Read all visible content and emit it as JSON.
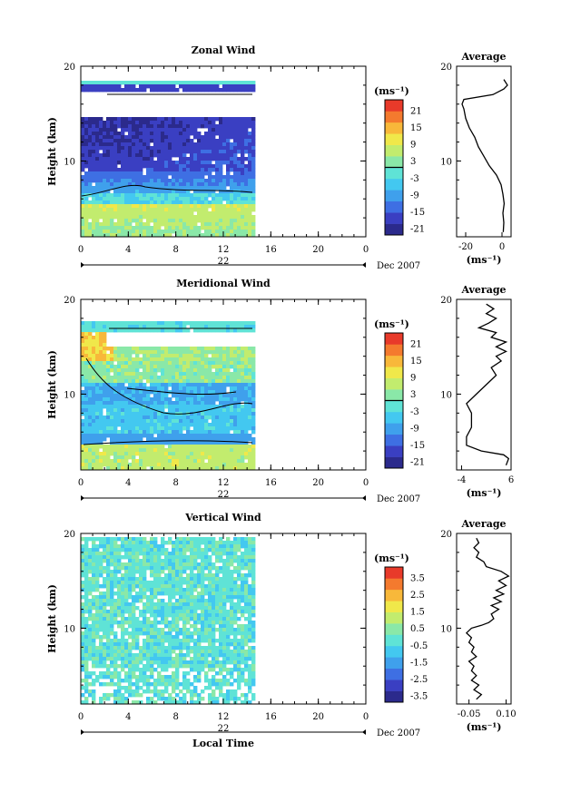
{
  "figure": {
    "day_label": "22",
    "month_label": "Dec 2007",
    "xlabel": "Local Time"
  },
  "chart_data": [
    {
      "type": "heatmap",
      "title": "Zonal Wind",
      "ylabel": "Height (km)",
      "xlim": [
        0,
        24
      ],
      "ylim": [
        2,
        20
      ],
      "xticks": [
        "0",
        "4",
        "8",
        "12",
        "16",
        "20",
        "0"
      ],
      "yticks": [
        "10",
        "20"
      ],
      "data_extent_x": [
        0,
        14.5
      ],
      "colorbar": {
        "unit": "(ms⁻¹)",
        "ticks": [
          "21",
          "15",
          "9",
          "3",
          "-3",
          "-9",
          "-15",
          "-21"
        ],
        "range": [
          -24,
          24
        ]
      },
      "profile": {
        "title": "Average",
        "xlabel": "(ms⁻¹)",
        "xticks": [
          "-20",
          "0"
        ],
        "xlim": [
          -25,
          5
        ],
        "points": [
          [
            0.7,
            2.5
          ],
          [
            1.0,
            3.5
          ],
          [
            0.5,
            4.5
          ],
          [
            1.2,
            5.5
          ],
          [
            0.5,
            6.5
          ],
          [
            -0.5,
            7.5
          ],
          [
            -3,
            8.5
          ],
          [
            -7,
            9.5
          ],
          [
            -10,
            10.5
          ],
          [
            -13,
            11.5
          ],
          [
            -15,
            12.5
          ],
          [
            -18,
            13.5
          ],
          [
            -20,
            14.5
          ],
          [
            -21,
            15.5
          ],
          [
            -22,
            16.0
          ],
          [
            -21,
            16.5
          ],
          [
            -5,
            17.0
          ],
          [
            1,
            17.6
          ],
          [
            3,
            18.0
          ],
          [
            1,
            18.6
          ]
        ]
      }
    },
    {
      "type": "heatmap",
      "title": "Meridional Wind",
      "ylabel": "Height (km)",
      "xlim": [
        0,
        24
      ],
      "ylim": [
        2,
        20
      ],
      "xticks": [
        "0",
        "4",
        "8",
        "12",
        "16",
        "20",
        "0"
      ],
      "yticks": [
        "10",
        "20"
      ],
      "data_extent_x": [
        0,
        14.5
      ],
      "colorbar": {
        "unit": "(ms⁻¹)",
        "ticks": [
          "21",
          "15",
          "9",
          "3",
          "-3",
          "-9",
          "-15",
          "-21"
        ],
        "range": [
          -24,
          24
        ]
      },
      "profile": {
        "title": "Average",
        "xlabel": "(ms⁻¹)",
        "xticks": [
          "-4",
          "6"
        ],
        "xlim": [
          -5,
          6
        ],
        "points": [
          [
            5,
            2.5
          ],
          [
            5.5,
            3.2
          ],
          [
            4.5,
            3.6
          ],
          [
            0,
            4.0
          ],
          [
            -3,
            4.6
          ],
          [
            -3,
            5.5
          ],
          [
            -2,
            6.5
          ],
          [
            -2,
            8.0
          ],
          [
            -3,
            9.0
          ],
          [
            -1,
            10.0
          ],
          [
            1,
            11.0
          ],
          [
            3,
            12.0
          ],
          [
            2,
            12.8
          ],
          [
            4,
            13.5
          ],
          [
            3,
            14.0
          ],
          [
            5,
            14.5
          ],
          [
            3,
            15.0
          ],
          [
            5,
            15.5
          ],
          [
            2,
            16.0
          ],
          [
            3,
            16.5
          ],
          [
            -0.5,
            17.0
          ],
          [
            1.5,
            17.5
          ],
          [
            3,
            18.0
          ],
          [
            1,
            18.5
          ],
          [
            2.5,
            19.0
          ],
          [
            1,
            19.5
          ]
        ]
      }
    },
    {
      "type": "heatmap",
      "title": "Vertical Wind",
      "ylabel": "Height (km)",
      "xlim": [
        0,
        24
      ],
      "ylim": [
        2,
        20
      ],
      "xticks": [
        "0",
        "4",
        "8",
        "12",
        "16",
        "20",
        "0"
      ],
      "yticks": [
        "10",
        "20"
      ],
      "data_extent_x": [
        0,
        14.5
      ],
      "colorbar": {
        "unit": "(ms⁻¹)",
        "ticks": [
          "3.5",
          "2.5",
          "1.5",
          "0.5",
          "-0.5",
          "-1.5",
          "-2.5",
          "-3.5"
        ],
        "range": [
          -4,
          4
        ]
      },
      "profile": {
        "title": "Average",
        "xlabel": "(ms⁻¹)",
        "xticks": [
          "-0.05",
          "0.10"
        ],
        "xlim": [
          -0.1,
          0.12
        ],
        "points": [
          [
            -0.02,
            2.5
          ],
          [
            0.0,
            3.0
          ],
          [
            -0.03,
            3.5
          ],
          [
            -0.01,
            4.0
          ],
          [
            -0.04,
            4.5
          ],
          [
            -0.02,
            5.0
          ],
          [
            -0.04,
            5.5
          ],
          [
            -0.03,
            6.0
          ],
          [
            -0.05,
            6.5
          ],
          [
            -0.02,
            7.0
          ],
          [
            -0.04,
            7.5
          ],
          [
            -0.03,
            8.0
          ],
          [
            -0.05,
            8.5
          ],
          [
            -0.04,
            9.0
          ],
          [
            -0.06,
            9.5
          ],
          [
            -0.04,
            10.0
          ],
          [
            0.0,
            10.3
          ],
          [
            0.03,
            10.6
          ],
          [
            0.05,
            11.0
          ],
          [
            0.04,
            11.5
          ],
          [
            0.07,
            12.0
          ],
          [
            0.04,
            12.4
          ],
          [
            0.08,
            12.8
          ],
          [
            0.05,
            13.2
          ],
          [
            0.09,
            13.6
          ],
          [
            0.06,
            14.0
          ],
          [
            0.1,
            14.5
          ],
          [
            0.07,
            15.0
          ],
          [
            0.11,
            15.5
          ],
          [
            0.08,
            16.0
          ],
          [
            0.02,
            16.5
          ],
          [
            0.01,
            17.0
          ],
          [
            -0.02,
            17.5
          ],
          [
            -0.01,
            18.0
          ],
          [
            -0.03,
            18.5
          ],
          [
            -0.01,
            19.0
          ],
          [
            -0.02,
            19.5
          ]
        ]
      }
    }
  ]
}
